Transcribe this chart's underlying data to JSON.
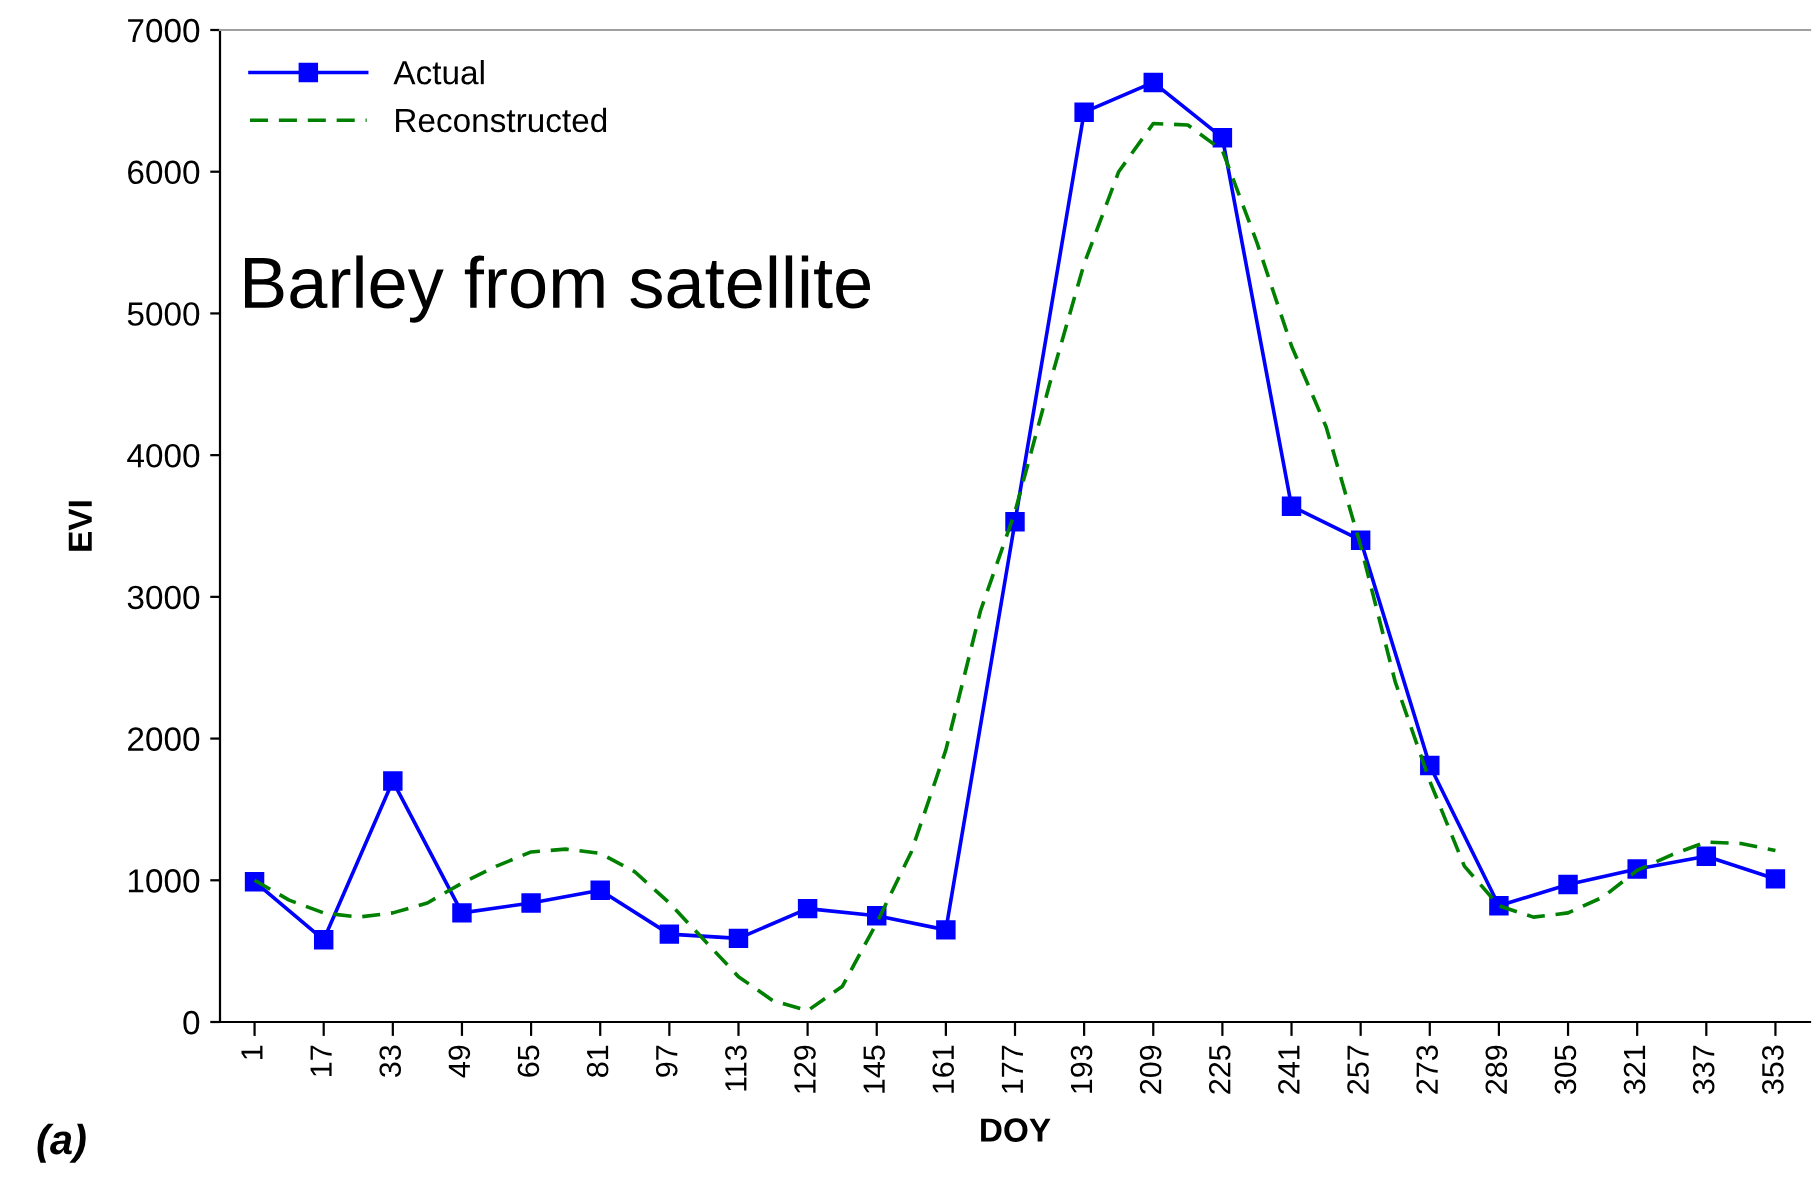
{
  "chart_data": {
    "type": "line",
    "xlabel": "DOY",
    "ylabel": "EVI",
    "xlim": [
      -7,
      361
    ],
    "xticks": [
      1,
      17,
      33,
      49,
      65,
      81,
      97,
      113,
      129,
      145,
      161,
      177,
      193,
      209,
      225,
      241,
      257,
      273,
      289,
      305,
      321,
      337,
      353
    ],
    "series": [
      {
        "name": "Actual",
        "color": "#0000ff",
        "marker": "square",
        "line_style": "solid",
        "x": [
          1,
          17,
          33,
          49,
          65,
          81,
          97,
          113,
          129,
          145,
          161,
          177,
          193,
          209,
          225,
          241,
          257,
          273,
          289,
          305,
          321,
          337,
          353
        ],
        "values": [
          990,
          580,
          1700,
          770,
          840,
          930,
          620,
          590,
          800,
          750,
          650,
          3530,
          6420,
          6630,
          6240,
          3640,
          3400,
          1810,
          820,
          970,
          1080,
          1170,
          1010
        ]
      },
      {
        "name": "Reconstructed",
        "color": "#008000",
        "marker": "none",
        "line_style": "dashed",
        "x": [
          1,
          9,
          17,
          25,
          33,
          41,
          49,
          57,
          65,
          73,
          81,
          89,
          97,
          105,
          113,
          121,
          129,
          137,
          145,
          153,
          161,
          169,
          177,
          185,
          193,
          201,
          209,
          217,
          225,
          233,
          241,
          249,
          257,
          265,
          273,
          281,
          289,
          297,
          305,
          313,
          321,
          329,
          337,
          345,
          353
        ],
        "values": [
          1000,
          860,
          770,
          740,
          770,
          840,
          980,
          1100,
          1200,
          1220,
          1190,
          1060,
          840,
          580,
          320,
          150,
          80,
          250,
          700,
          1200,
          1920,
          2900,
          3600,
          4500,
          5350,
          6000,
          6340,
          6330,
          6150,
          5500,
          4770,
          4200,
          3360,
          2400,
          1700,
          1100,
          820,
          740,
          770,
          880,
          1070,
          1180,
          1270,
          1260,
          1210
        ]
      }
    ],
    "ylim": [
      0,
      7000
    ],
    "yticks": [
      0,
      1000,
      2000,
      3000,
      4000,
      5000,
      6000,
      7000
    ],
    "grid": false,
    "legend": "top left",
    "annotations": [
      "Barley from satellite",
      "(a)"
    ]
  }
}
